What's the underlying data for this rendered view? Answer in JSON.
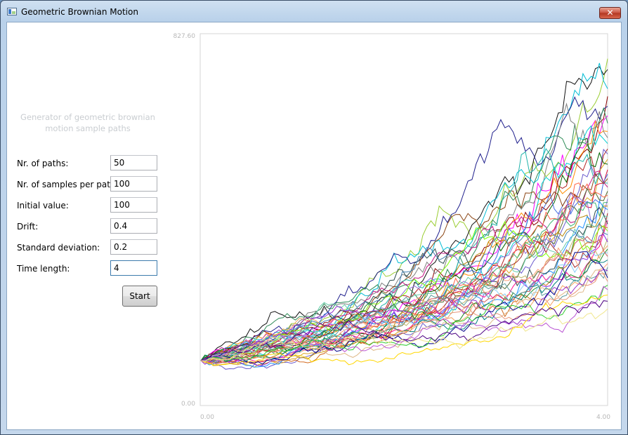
{
  "window": {
    "title": "Geometric Brownian Motion",
    "close_glyph": "✕"
  },
  "form": {
    "subtitle_line1": "Generator of geometric brownian",
    "subtitle_line2": "motion sample paths",
    "fields": [
      {
        "label": "Nr. of paths:",
        "value": "50"
      },
      {
        "label": "Nr. of samples per path:",
        "value": "100"
      },
      {
        "label": "Initial value:",
        "value": "100"
      },
      {
        "label": "Drift:",
        "value": "0.4"
      },
      {
        "label": "Standard deviation:",
        "value": "0.2"
      },
      {
        "label": "Time length:",
        "value": "4"
      }
    ],
    "start_label": "Start"
  },
  "chart_data": {
    "type": "line",
    "title": "",
    "xlabel": "",
    "ylabel": "",
    "xlim": [
      0,
      4
    ],
    "ylim": [
      0,
      827.6
    ],
    "x_tick_labels": [
      "0.00",
      "4.00"
    ],
    "y_tick_labels": [
      "827.60",
      "0.00"
    ],
    "grid": false,
    "n_series": 50,
    "samples_per_series": 100,
    "initial_value": 100,
    "drift": 0.4,
    "std_dev": 0.2,
    "series_final_values": [
      772,
      748,
      705,
      688,
      666,
      645,
      628,
      610,
      596,
      583,
      571,
      560,
      548,
      537,
      525,
      515,
      505,
      495,
      486,
      477,
      468,
      460,
      452,
      444,
      436,
      428,
      420,
      412,
      404,
      396,
      388,
      380,
      372,
      364,
      356,
      348,
      340,
      332,
      324,
      316,
      308,
      300,
      292,
      284,
      276,
      268,
      258,
      246,
      232,
      215
    ],
    "series_colors": [
      "#9acd32",
      "#111111",
      "#00bcd4",
      "#8b0000",
      "#1e1e8c",
      "#ff00ff",
      "#2e8b57",
      "#ff8c00",
      "#808080",
      "#00ced1",
      "#b22222",
      "#6a5acd",
      "#daa520",
      "#006400",
      "#dc143c",
      "#4169e1",
      "#8b4513",
      "#20b2aa",
      "#c71585",
      "#556b2f",
      "#ff6347",
      "#9370db",
      "#3cb371",
      "#b8860b",
      "#1e90ff",
      "#a52a2a",
      "#66cdaa",
      "#ff1493",
      "#2f4f4f",
      "#d2691e",
      "#7fff00",
      "#4682b4",
      "#bdb76b",
      "#8a2be2",
      "#f4a460",
      "#228b22",
      "#87cefa",
      "#cd5c5c",
      "#008080",
      "#ffa07a",
      "#5f9ea0",
      "#9932cc",
      "#deb887",
      "#00008b",
      "#e9967a",
      "#32cd32",
      "#ba55d3",
      "#ffd700",
      "#4b0082",
      "#f0e68c"
    ]
  }
}
